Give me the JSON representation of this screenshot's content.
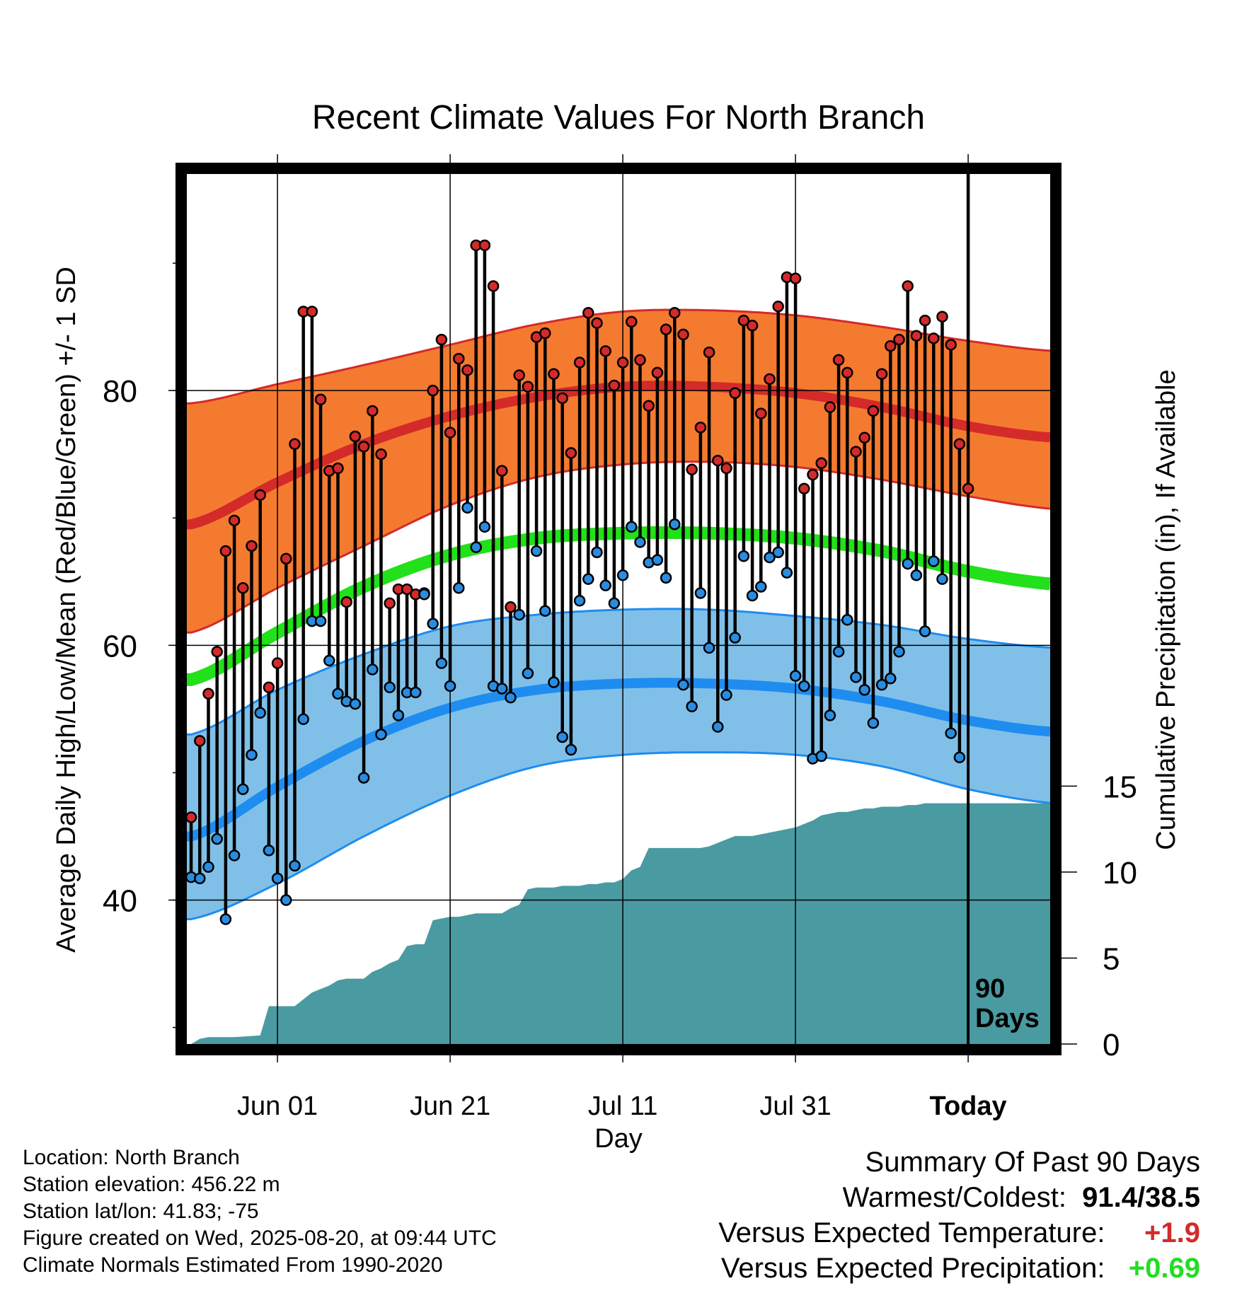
{
  "chart_data": {
    "type": "line",
    "title": "Recent Climate Values For North Branch",
    "xlabel": "Day",
    "ylabel": "Average Daily High/Low/Mean (Red/Blue/Green) +/- 1 SD",
    "y2label": "Cumulative Precipitation (in), If Available",
    "x_ticks": [
      "Jun 01",
      "Jun 21",
      "Jul 11",
      "Jul 31",
      "Today"
    ],
    "x_tick_days": [
      0,
      20,
      40,
      60,
      80
    ],
    "xlim_days": [
      -10.5,
      89.5
    ],
    "y_ticks": [
      "40",
      "60",
      "80"
    ],
    "ylim": [
      28.7,
      97
    ],
    "y2_ticks": [
      "0",
      "5",
      "10",
      "15"
    ],
    "y2lim": [
      0,
      50.6
    ],
    "today_marker": {
      "day": 80,
      "label_line1": "90",
      "label_line2": "Days"
    },
    "grid": true,
    "colors": {
      "high_band": "#f47a30",
      "high_line": "#d42a2a",
      "low_band": "#80c0e8",
      "low_line": "#1f8cf0",
      "mean_line": "#22e01a",
      "precip": "#4a9aa2",
      "high_point": "#d42a2a",
      "low_point": "#2a8ce0"
    },
    "normals": {
      "days": [
        -10,
        0,
        10,
        20,
        30,
        40,
        50,
        60,
        70,
        80,
        90
      ],
      "high_mean": [
        69.5,
        72.8,
        75.8,
        78.0,
        79.5,
        80.3,
        80.3,
        79.8,
        78.7,
        77.2,
        76.3
      ],
      "high_upper": [
        79.0,
        80.5,
        82.0,
        83.6,
        85.2,
        86.2,
        86.3,
        85.9,
        85.0,
        83.9,
        83.1
      ],
      "high_lower": [
        61.0,
        64.5,
        67.8,
        71.0,
        73.2,
        74.2,
        74.4,
        74.0,
        73.0,
        71.7,
        70.7
      ],
      "mean": [
        57.3,
        61.0,
        64.6,
        67.1,
        68.4,
        68.8,
        68.8,
        68.4,
        67.4,
        65.8,
        64.8
      ],
      "low_mean": [
        45.0,
        48.9,
        52.5,
        55.1,
        56.5,
        57.0,
        57.0,
        56.6,
        55.6,
        54.1,
        53.2
      ],
      "low_upper": [
        53.0,
        56.5,
        59.3,
        61.5,
        62.4,
        62.8,
        62.8,
        62.3,
        61.6,
        60.5,
        59.8
      ],
      "low_lower": [
        38.5,
        41.3,
        45.0,
        48.2,
        50.5,
        51.4,
        51.6,
        51.4,
        50.5,
        48.7,
        47.6
      ]
    },
    "series": [
      {
        "name": "High",
        "values": [
          46.5,
          52.5,
          56.2,
          59.5,
          67.4,
          69.8,
          64.5,
          67.8,
          71.8,
          56.7,
          58.6,
          66.8,
          75.8,
          86.2,
          86.2,
          79.3,
          73.7,
          73.9,
          63.4,
          76.4,
          75.6,
          78.4,
          75.0,
          63.3,
          64.4,
          64.4,
          64.0,
          64.1,
          80.0,
          84.0,
          76.7,
          82.5,
          81.6,
          91.4,
          91.4,
          88.2,
          73.7,
          63.0,
          81.2,
          80.3,
          84.2,
          84.5,
          81.3,
          79.4,
          75.1,
          82.2,
          86.1,
          85.3,
          83.1,
          80.4,
          82.2,
          85.4,
          82.4,
          78.8,
          81.4,
          84.8,
          86.1,
          84.4,
          73.8,
          77.1,
          83.0,
          74.5,
          73.9,
          79.8,
          85.5,
          85.1,
          78.2,
          80.9,
          86.6,
          88.9,
          88.8,
          72.3,
          73.4,
          74.3,
          78.7,
          82.4,
          81.4,
          75.2,
          76.3,
          78.4,
          81.3,
          83.5,
          84.0,
          88.2,
          84.3,
          85.5,
          84.1,
          85.8,
          83.6,
          75.8,
          72.3
        ]
      },
      {
        "name": "Low",
        "values": [
          41.8,
          41.7,
          42.6,
          44.8,
          38.5,
          43.5,
          48.7,
          51.4,
          54.7,
          43.9,
          41.7,
          40.0,
          42.7,
          54.2,
          61.9,
          61.9,
          58.8,
          56.2,
          55.6,
          55.4,
          49.6,
          58.1,
          53.0,
          56.7,
          54.5,
          56.3,
          56.3,
          64.0,
          61.7,
          58.6,
          56.8,
          64.5,
          70.8,
          67.7,
          69.3,
          56.8,
          56.6,
          55.9,
          62.4,
          57.8,
          67.4,
          62.7,
          57.1,
          52.8,
          51.8,
          63.5,
          65.2,
          67.3,
          64.7,
          63.3,
          65.5,
          69.3,
          68.1,
          66.5,
          66.7,
          65.3,
          69.5,
          56.9,
          55.2,
          64.1,
          59.8,
          53.6,
          56.1,
          60.6,
          67.0,
          63.9,
          64.6,
          66.9,
          67.3,
          65.7,
          57.6,
          56.8,
          51.1,
          51.3,
          54.5,
          59.5,
          62.0,
          57.5,
          56.5,
          53.9,
          56.9,
          57.4,
          59.5,
          66.4,
          65.5,
          61.1,
          66.6,
          65.2,
          53.1,
          51.2
        ]
      },
      {
        "name": "Cumulative Precipitation",
        "days": [
          -10,
          -9,
          -8,
          -7,
          -6,
          -5,
          -2,
          -1,
          0,
          1,
          2,
          3,
          4,
          5,
          6,
          7,
          8,
          9,
          10,
          11,
          12,
          13,
          14,
          15,
          16,
          17,
          18,
          19,
          20,
          21,
          22,
          23,
          24,
          25,
          26,
          27,
          28,
          29,
          30,
          31,
          32,
          33,
          34,
          35,
          36,
          37,
          38,
          39,
          40,
          41,
          42,
          43,
          44,
          45,
          46,
          47,
          48,
          49,
          50,
          51,
          52,
          53,
          54,
          55,
          56,
          57,
          58,
          59,
          60,
          61,
          62,
          63,
          64,
          65,
          66,
          67,
          68,
          69,
          70,
          71,
          72,
          73,
          74,
          75,
          76,
          77,
          78,
          79,
          80,
          89.5
        ],
        "values": [
          0.0,
          0.3,
          0.4,
          0.4,
          0.4,
          0.4,
          0.5,
          2.2,
          2.2,
          2.2,
          2.2,
          2.6,
          3.0,
          3.2,
          3.4,
          3.7,
          3.8,
          3.8,
          3.8,
          4.2,
          4.4,
          4.7,
          4.9,
          5.7,
          5.8,
          5.8,
          7.2,
          7.3,
          7.4,
          7.4,
          7.5,
          7.6,
          7.6,
          7.6,
          7.6,
          7.9,
          8.1,
          9.0,
          9.1,
          9.1,
          9.1,
          9.2,
          9.2,
          9.2,
          9.3,
          9.3,
          9.4,
          9.4,
          9.6,
          10.1,
          10.3,
          11.4,
          11.4,
          11.4,
          11.4,
          11.4,
          11.4,
          11.4,
          11.5,
          11.7,
          11.9,
          12.1,
          12.1,
          12.1,
          12.2,
          12.3,
          12.4,
          12.5,
          12.6,
          12.8,
          13.0,
          13.3,
          13.4,
          13.5,
          13.5,
          13.6,
          13.7,
          13.7,
          13.8,
          13.8,
          13.8,
          13.9,
          13.9,
          14.0,
          14.0,
          14.0,
          14.0,
          14.0,
          14.0,
          14.0
        ]
      }
    ]
  },
  "footer": {
    "location": "Location: North Branch",
    "elevation": "Station elevation: 456.22 m",
    "latlon": "Station lat/lon: 41.83; -75",
    "created": "Figure created on Wed, 2025-08-20, at 09:44 UTC",
    "normals": "Climate Normals Estimated From 1990-2020"
  },
  "summary": {
    "title": "Summary Of Past 90 Days",
    "warm_cold_label": "Warmest/Coldest:",
    "warm_cold_value": "91.4/38.5",
    "temp_label": "Versus Expected Temperature:",
    "temp_value": "+1.9",
    "temp_color": "#d42a2a",
    "precip_label": "Versus Expected Precipitation:",
    "precip_value": "+0.69",
    "precip_color": "#22dd22"
  }
}
